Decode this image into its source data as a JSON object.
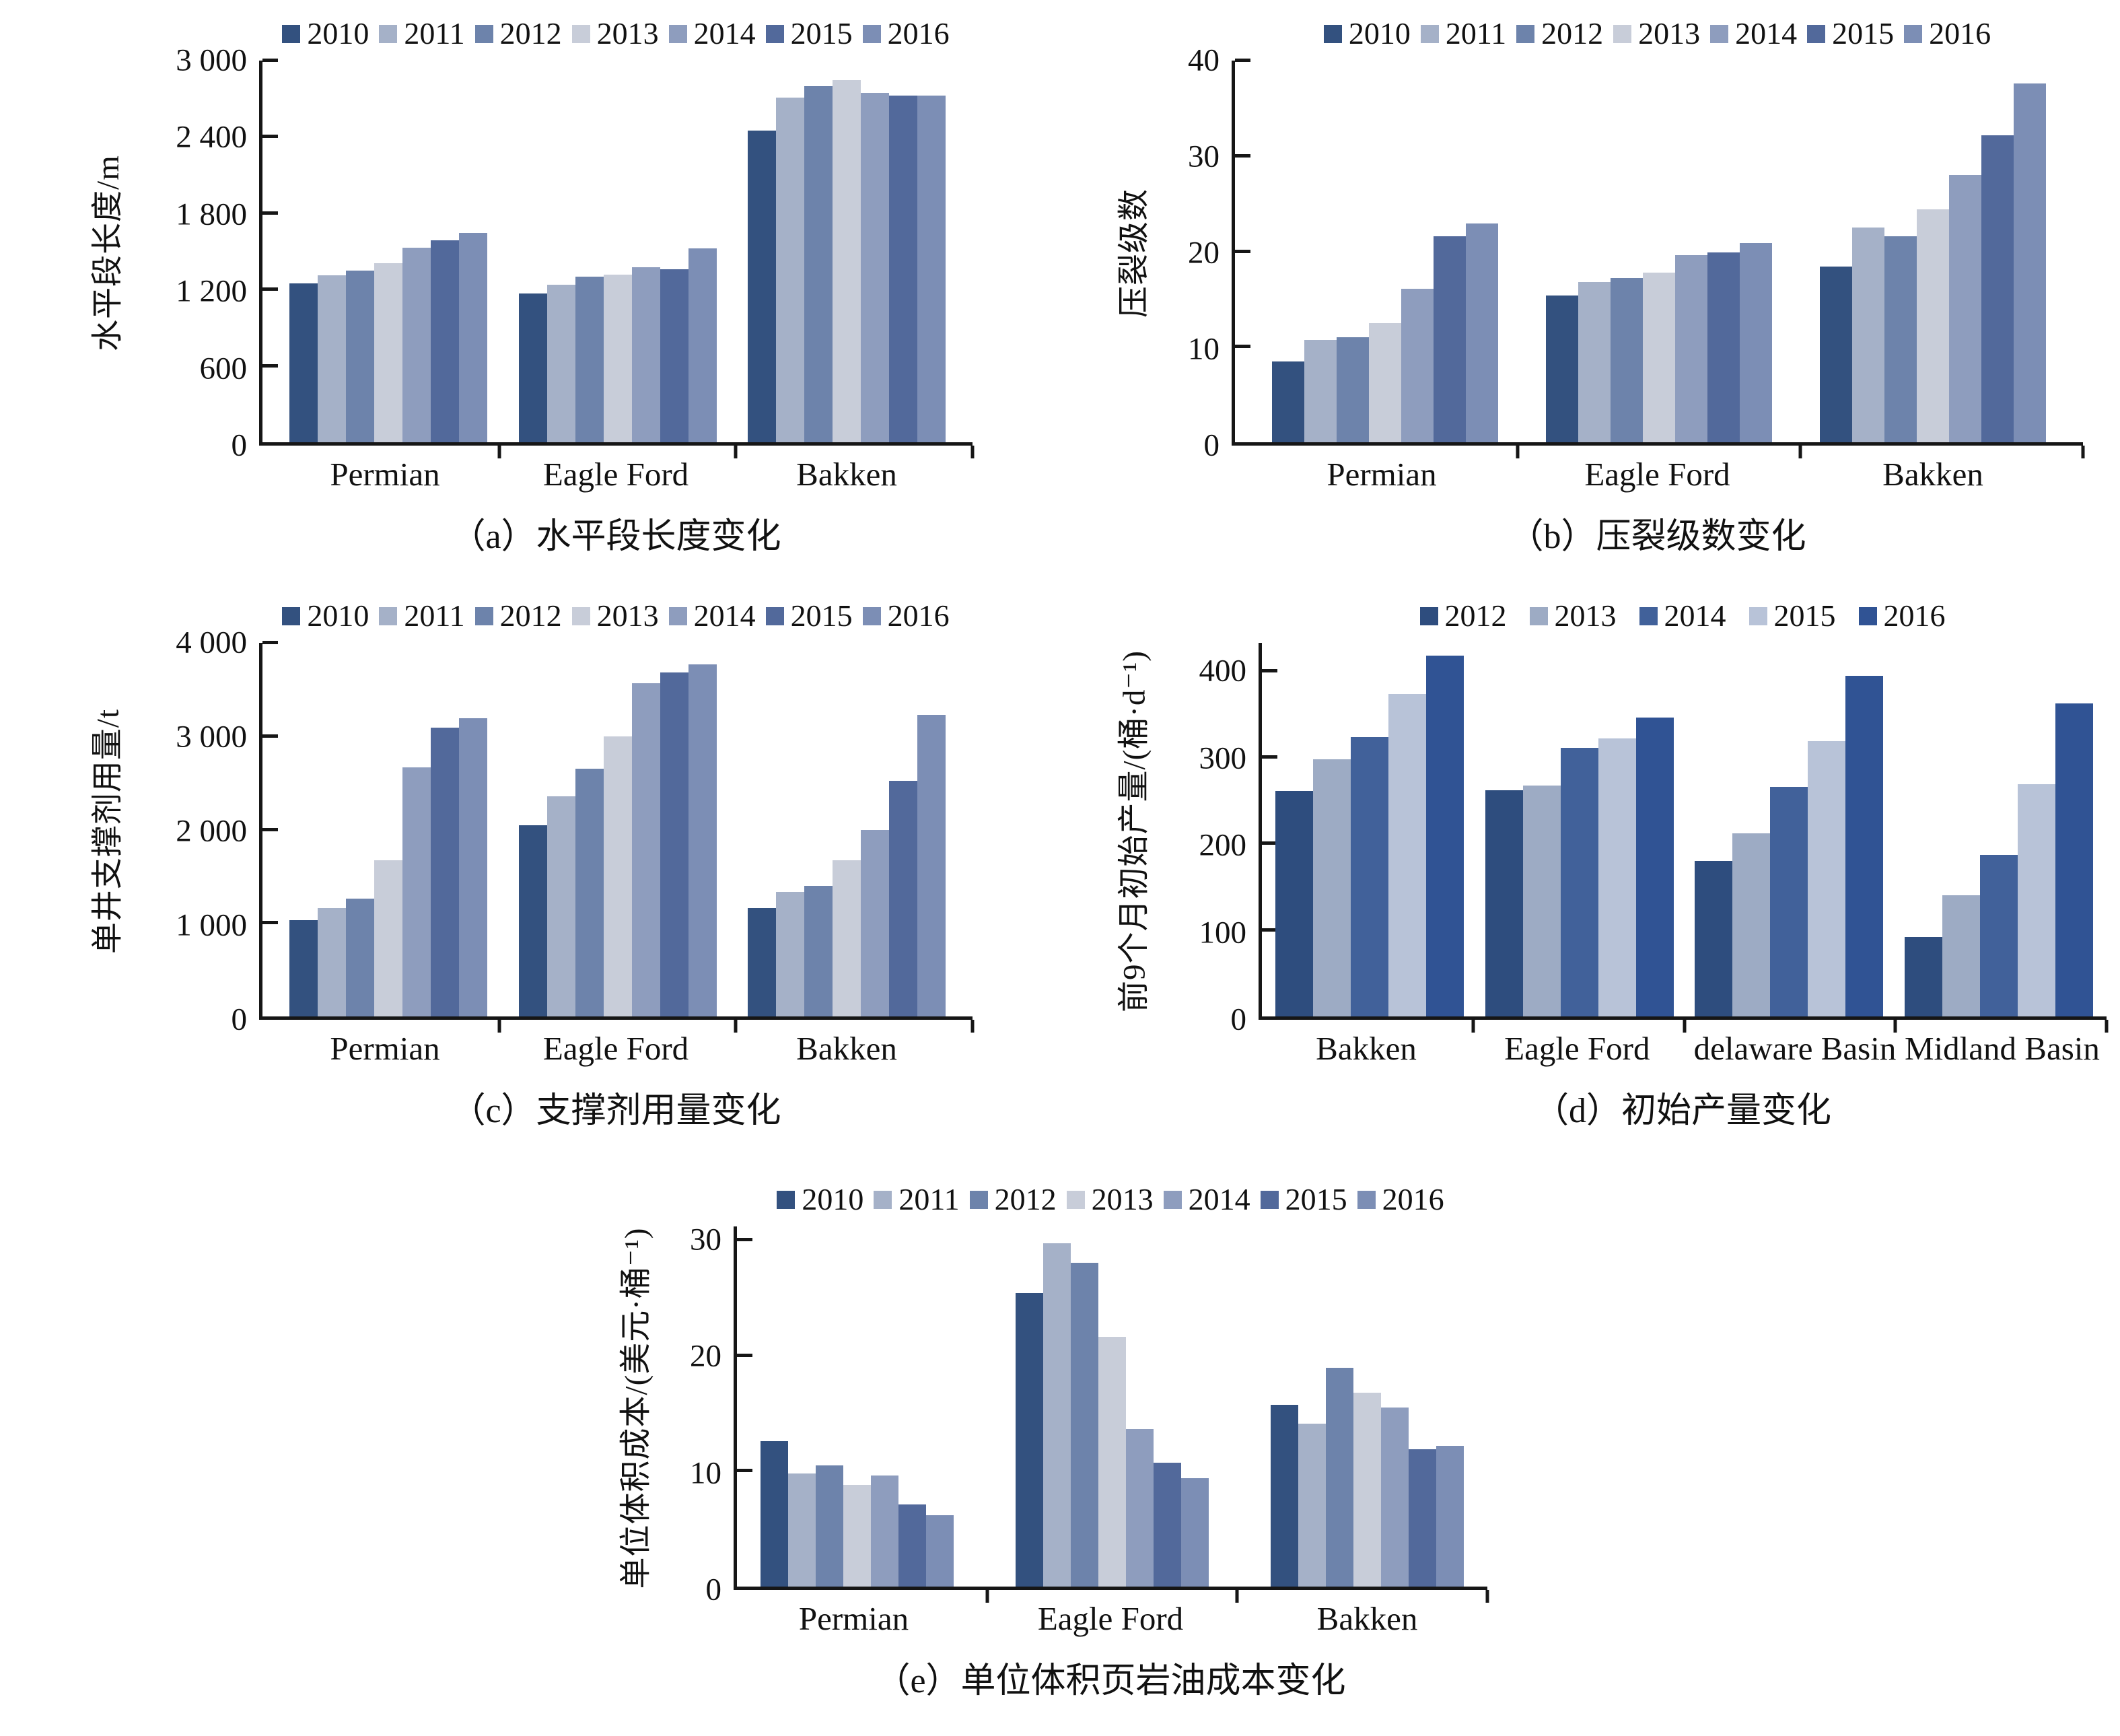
{
  "figure": {
    "background": "#ffffff",
    "axis_color": "#161616",
    "year_palette_7": [
      "#33517F",
      "#A5B1C8",
      "#6D83AB",
      "#C8CDD9",
      "#8E9DBE",
      "#52699B",
      "#7C8EB5"
    ],
    "year_palette_5": [
      "#2E4D7E",
      "#9DABC4",
      "#41619A",
      "#B8C3D8",
      "#305394"
    ]
  },
  "chart_data": [
    {
      "id": "a",
      "type": "bar",
      "title": "（a）水平段长度变化",
      "xlabel": "",
      "ylabel": "水平段长度/m",
      "legend_position": "top",
      "grid": false,
      "ylim": [
        0,
        3000
      ],
      "ytick_values": [
        0,
        600,
        1200,
        1800,
        2400,
        3000
      ],
      "ytick_labels": [
        "0",
        "600",
        "1 200",
        "1 800",
        "2 400",
        "3 000"
      ],
      "categories": [
        "Permian",
        "Eagle Ford",
        "Bakken"
      ],
      "series": [
        {
          "name": "2010",
          "color": "#33517F",
          "values": [
            1250,
            1170,
            2450
          ]
        },
        {
          "name": "2011",
          "color": "#A5B1C8",
          "values": [
            1310,
            1240,
            2710
          ]
        },
        {
          "name": "2012",
          "color": "#6D83AB",
          "values": [
            1350,
            1300,
            2800
          ]
        },
        {
          "name": "2013",
          "color": "#C8CDD9",
          "values": [
            1410,
            1320,
            2845
          ]
        },
        {
          "name": "2014",
          "color": "#8E9DBE",
          "values": [
            1530,
            1375,
            2745
          ]
        },
        {
          "name": "2015",
          "color": "#52699B",
          "values": [
            1590,
            1360,
            2725
          ]
        },
        {
          "name": "2016",
          "color": "#7C8EB5",
          "values": [
            1645,
            1525,
            2725
          ]
        }
      ]
    },
    {
      "id": "b",
      "type": "bar",
      "title": "（b）压裂级数变化",
      "xlabel": "",
      "ylabel": "压裂级数",
      "legend_position": "top",
      "grid": false,
      "ylim": [
        0,
        40
      ],
      "ytick_values": [
        0,
        10,
        20,
        30,
        40
      ],
      "ytick_labels": [
        "0",
        "10",
        "20",
        "30",
        "40"
      ],
      "categories": [
        "Permian",
        "Eagle Ford",
        "Bakken"
      ],
      "series": [
        {
          "name": "2010",
          "color": "#33517F",
          "values": [
            8.5,
            15.4,
            18.4
          ]
        },
        {
          "name": "2011",
          "color": "#A5B1C8",
          "values": [
            10.7,
            16.8,
            22.5
          ]
        },
        {
          "name": "2012",
          "color": "#6D83AB",
          "values": [
            11.0,
            17.2,
            21.6
          ]
        },
        {
          "name": "2013",
          "color": "#C8CDD9",
          "values": [
            12.5,
            17.8,
            24.4
          ]
        },
        {
          "name": "2014",
          "color": "#8E9DBE",
          "values": [
            16.1,
            19.6,
            28.0
          ]
        },
        {
          "name": "2015",
          "color": "#52699B",
          "values": [
            21.6,
            19.9,
            32.2
          ]
        },
        {
          "name": "2016",
          "color": "#7C8EB5",
          "values": [
            22.9,
            20.9,
            37.6
          ]
        }
      ]
    },
    {
      "id": "c",
      "type": "bar",
      "title": "（c）支撑剂用量变化",
      "xlabel": "",
      "ylabel": "单井支撑剂用量/t",
      "legend_position": "top",
      "grid": false,
      "ylim": [
        0,
        4000
      ],
      "ytick_values": [
        0,
        1000,
        2000,
        3000,
        4000
      ],
      "ytick_labels": [
        "0",
        "1 000",
        "2 000",
        "3 000",
        "4 000"
      ],
      "categories": [
        "Permian",
        "Eagle Ford",
        "Bakken"
      ],
      "series": [
        {
          "name": "2010",
          "color": "#33517F",
          "values": [
            1030,
            2050,
            1160
          ]
        },
        {
          "name": "2011",
          "color": "#A5B1C8",
          "values": [
            1160,
            2360,
            1330
          ]
        },
        {
          "name": "2012",
          "color": "#6D83AB",
          "values": [
            1260,
            2650,
            1400
          ]
        },
        {
          "name": "2013",
          "color": "#C8CDD9",
          "values": [
            1670,
            3000,
            1670
          ]
        },
        {
          "name": "2014",
          "color": "#8E9DBE",
          "values": [
            2670,
            3570,
            2000
          ]
        },
        {
          "name": "2015",
          "color": "#52699B",
          "values": [
            3090,
            3680,
            2520
          ]
        },
        {
          "name": "2016",
          "color": "#7C8EB5",
          "values": [
            3190,
            3770,
            3230
          ]
        }
      ]
    },
    {
      "id": "d",
      "type": "bar",
      "title": "（d）初始产量变化",
      "xlabel": "",
      "ylabel": "前9个月初始产量/(桶·d⁻¹)",
      "legend_position": "top",
      "grid": false,
      "ylim": [
        0,
        400
      ],
      "ytick_values": [
        0,
        100,
        200,
        300,
        400
      ],
      "ytick_labels": [
        "0",
        "100",
        "200",
        "300",
        "400"
      ],
      "categories": [
        "Bakken",
        "Eagle Ford",
        "delaware Basin",
        "Midland Basin"
      ],
      "series": [
        {
          "name": "2012",
          "color": "#2E4D7E",
          "values": [
            261,
            262,
            180,
            92
          ]
        },
        {
          "name": "2013",
          "color": "#9DABC4",
          "values": [
            298,
            267,
            212,
            140
          ]
        },
        {
          "name": "2014",
          "color": "#41619A",
          "values": [
            323,
            311,
            266,
            187
          ]
        },
        {
          "name": "2015",
          "color": "#B8C3D8",
          "values": [
            373,
            322,
            319,
            269
          ]
        },
        {
          "name": "2016",
          "color": "#305394",
          "values": [
            418,
            346,
            394,
            362
          ]
        }
      ]
    },
    {
      "id": "e",
      "type": "bar",
      "title": "（e）单位体积页岩油成本变化",
      "xlabel": "",
      "ylabel": "单位体积成本/(美元·桶⁻¹)",
      "legend_position": "top",
      "grid": false,
      "ylim": [
        0,
        30
      ],
      "ytick_values": [
        0,
        10,
        20,
        30
      ],
      "ytick_labels": [
        "0",
        "10",
        "20",
        "30"
      ],
      "categories": [
        "Permian",
        "Eagle Ford",
        "Bakken"
      ],
      "series": [
        {
          "name": "2010",
          "color": "#33517F",
          "values": [
            12.6,
            25.4,
            15.7
          ]
        },
        {
          "name": "2011",
          "color": "#A5B1C8",
          "values": [
            9.8,
            29.7,
            14.1
          ]
        },
        {
          "name": "2012",
          "color": "#6D83AB",
          "values": [
            10.5,
            28.0,
            18.9
          ]
        },
        {
          "name": "2013",
          "color": "#C8CDD9",
          "values": [
            8.8,
            21.6,
            16.8
          ]
        },
        {
          "name": "2014",
          "color": "#8E9DBE",
          "values": [
            9.6,
            13.6,
            15.5
          ]
        },
        {
          "name": "2015",
          "color": "#52699B",
          "values": [
            7.1,
            10.7,
            11.9
          ]
        },
        {
          "name": "2016",
          "color": "#7C8EB5",
          "values": [
            6.2,
            9.4,
            12.2
          ]
        }
      ]
    }
  ]
}
